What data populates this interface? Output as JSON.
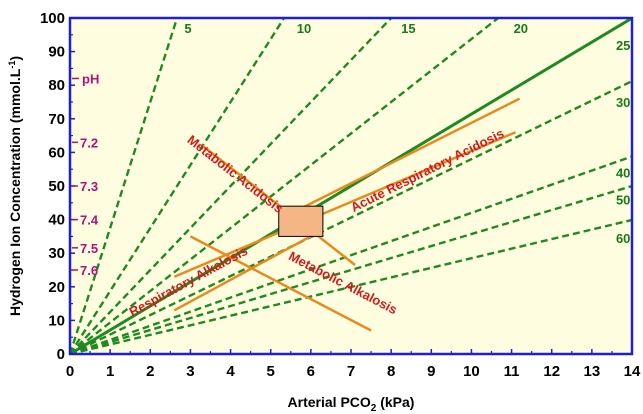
{
  "chart_data": {
    "type": "line",
    "xlabel": "Arterial PCO",
    "xlabel_sub": "2",
    "xlabel_unit": " (kPa)",
    "ylabel": "Hydrogen Ion Concentration (mmol.L",
    "ylabel_sup": "-1",
    "ylabel_close": ")",
    "xlim": [
      0,
      14
    ],
    "ylim": [
      0,
      100
    ],
    "x_ticks": [
      0,
      1,
      2,
      3,
      4,
      5,
      6,
      7,
      8,
      9,
      10,
      11,
      12,
      13,
      14
    ],
    "y_ticks": [
      0,
      10,
      20,
      30,
      40,
      50,
      60,
      70,
      80,
      90,
      100
    ],
    "isopleths": [
      {
        "label": "5",
        "slope": 37.5,
        "solid": false,
        "label_x": 2.85,
        "label_y": 97
      },
      {
        "label": "10",
        "slope": 18.75,
        "solid": false,
        "label_x": 5.65,
        "label_y": 97
      },
      {
        "label": "15",
        "slope": 12.5,
        "solid": false,
        "label_x": 8.25,
        "label_y": 97
      },
      {
        "label": "20",
        "slope": 9.375,
        "solid": false,
        "label_x": 11.05,
        "label_y": 97
      },
      {
        "label": "25",
        "slope": 7.14,
        "solid": true,
        "label_x": 13.6,
        "label_y": 92
      },
      {
        "label": "30",
        "slope": 5.8,
        "solid": false,
        "label_x": 13.6,
        "label_y": 75
      },
      {
        "label": "40",
        "slope": 4.2,
        "solid": false,
        "label_x": 13.6,
        "label_y": 54
      },
      {
        "label": "50",
        "slope": 3.57,
        "solid": false,
        "label_x": 13.6,
        "label_y": 46
      },
      {
        "label": "60",
        "slope": 2.85,
        "solid": false,
        "label_x": 13.6,
        "label_y": 34.5
      }
    ],
    "ph_header": "pH",
    "ph_scale": [
      {
        "label": "7.2",
        "y": 63
      },
      {
        "label": "7.3",
        "y": 50
      },
      {
        "label": "7.4",
        "y": 40
      },
      {
        "label": "7.5",
        "y": 31.6
      },
      {
        "label": "7.6",
        "y": 25
      }
    ],
    "regions": [
      {
        "name": "Metabolic Acidosis",
        "x1": 3.3,
        "y1": 62,
        "x2": 7.1,
        "y2": 26.5,
        "lx": 4.05,
        "ly": 52.5
      },
      {
        "name": "Acute Respiratory Acidosis",
        "x1": 5.2,
        "y1": 40,
        "x2": 11.2,
        "y2": 76,
        "lx": 8.95,
        "ly": 53.5
      },
      {
        "name": "Respiratory Alkalosis",
        "x1": 2.6,
        "y1": 13,
        "x2": 6.3,
        "y2": 37,
        "lx": 3.0,
        "ly": 20.5
      },
      {
        "name": "Metabolic Alkalosis",
        "x1": 3.0,
        "y1": 35,
        "x2": 7.5,
        "y2": 7,
        "lx": 6.75,
        "ly": 20
      },
      {
        "name": "",
        "x1": 2.6,
        "y1": 23,
        "x2": 11.1,
        "y2": 66,
        "lx": 0,
        "ly": 0
      }
    ],
    "normal_box": {
      "x1": 5.2,
      "y1": 35,
      "x2": 6.3,
      "y2": 44
    },
    "colors": {
      "plot_background": "#fffde0",
      "axis_frame": "#1f1fd6",
      "isopleth": "#1f8a1f",
      "isopleth_label": "#1a7a1a",
      "region_line": "#e88a1f",
      "region_label": "#d11b1b",
      "normal_box_fill": "#f5b685",
      "ph_text": "#b0127a"
    }
  }
}
